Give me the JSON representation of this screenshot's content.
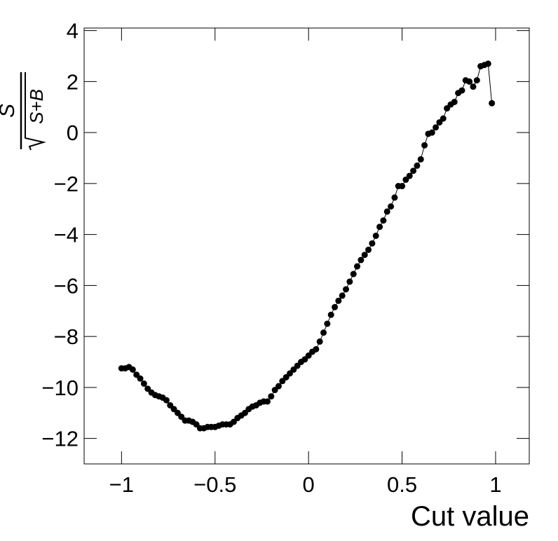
{
  "chart_data": {
    "type": "line",
    "x_label": "Cut value",
    "y_label": {
      "numerator": "S",
      "denominator": "S+B"
    },
    "x": [
      -1,
      -0.98,
      -0.96,
      -0.94,
      -0.92,
      -0.9,
      -0.88,
      -0.86,
      -0.84,
      -0.82,
      -0.8,
      -0.78,
      -0.76,
      -0.74,
      -0.72,
      -0.7,
      -0.68,
      -0.66,
      -0.64,
      -0.62,
      -0.6,
      -0.58,
      -0.56,
      -0.54,
      -0.52,
      -0.5,
      -0.48,
      -0.46,
      -0.44,
      -0.42,
      -0.4,
      -0.38,
      -0.36,
      -0.34,
      -0.32,
      -0.3,
      -0.28,
      -0.26,
      -0.24,
      -0.22,
      -0.2,
      -0.18,
      -0.16,
      -0.14,
      -0.12,
      -0.1,
      -0.08,
      -0.06,
      -0.04,
      -0.02,
      0,
      0.02,
      0.04,
      0.06,
      0.08,
      0.1,
      0.12,
      0.14,
      0.16,
      0.18,
      0.2,
      0.22,
      0.24,
      0.26,
      0.28,
      0.3,
      0.32,
      0.34,
      0.36,
      0.38,
      0.4,
      0.42,
      0.44,
      0.46,
      0.48,
      0.5,
      0.52,
      0.54,
      0.56,
      0.58,
      0.6,
      0.62,
      0.64,
      0.66,
      0.68,
      0.7,
      0.72,
      0.74,
      0.76,
      0.78,
      0.8,
      0.82,
      0.84,
      0.86,
      0.88,
      0.9,
      0.92,
      0.94,
      0.96,
      0.98
    ],
    "series": [
      {
        "color": "#000000",
        "values": [
          -9.25,
          -9.25,
          -9.2,
          -9.3,
          -9.5,
          -9.65,
          -9.85,
          -10.05,
          -10.2,
          -10.3,
          -10.35,
          -10.4,
          -10.5,
          -10.7,
          -10.85,
          -11.0,
          -11.15,
          -11.3,
          -11.3,
          -11.35,
          -11.45,
          -11.6,
          -11.6,
          -11.55,
          -11.55,
          -11.55,
          -11.5,
          -11.45,
          -11.45,
          -11.45,
          -11.35,
          -11.2,
          -11.1,
          -11.0,
          -10.85,
          -10.75,
          -10.7,
          -10.6,
          -10.55,
          -10.55,
          -10.35,
          -10.1,
          -9.95,
          -9.75,
          -9.6,
          -9.45,
          -9.3,
          -9.15,
          -9.0,
          -8.9,
          -8.75,
          -8.6,
          -8.5,
          -8.2,
          -7.85,
          -7.5,
          -7.15,
          -6.85,
          -6.6,
          -6.4,
          -6.15,
          -5.85,
          -5.55,
          -5.25,
          -5.0,
          -4.8,
          -4.6,
          -4.35,
          -4.05,
          -3.7,
          -3.45,
          -3.1,
          -2.9,
          -2.55,
          -2.1,
          -2.1,
          -1.85,
          -1.7,
          -1.5,
          -1.3,
          -1.05,
          -0.5,
          -0.05,
          0.0,
          0.2,
          0.4,
          0.55,
          0.95,
          1.1,
          1.2,
          1.55,
          1.65,
          2.05,
          2.0,
          1.8,
          2.05,
          2.6,
          2.65,
          2.7,
          1.15
        ]
      }
    ],
    "xlim": [
      -1.2,
      1.18
    ],
    "ylim": [
      -13.0,
      4.1
    ],
    "xticks": [
      {
        "value": -1,
        "label": "−1"
      },
      {
        "value": -0.5,
        "label": "−0.5"
      },
      0,
      0.5,
      1
    ],
    "yticks": [
      {
        "value": -12,
        "label": "−12"
      },
      {
        "value": -10,
        "label": "−10"
      },
      {
        "value": -8,
        "label": "−8"
      },
      {
        "value": -6,
        "label": "−6"
      },
      {
        "value": -4,
        "label": "−4"
      },
      {
        "value": -2,
        "label": "−2"
      },
      0,
      2,
      4
    ],
    "grid": false
  }
}
